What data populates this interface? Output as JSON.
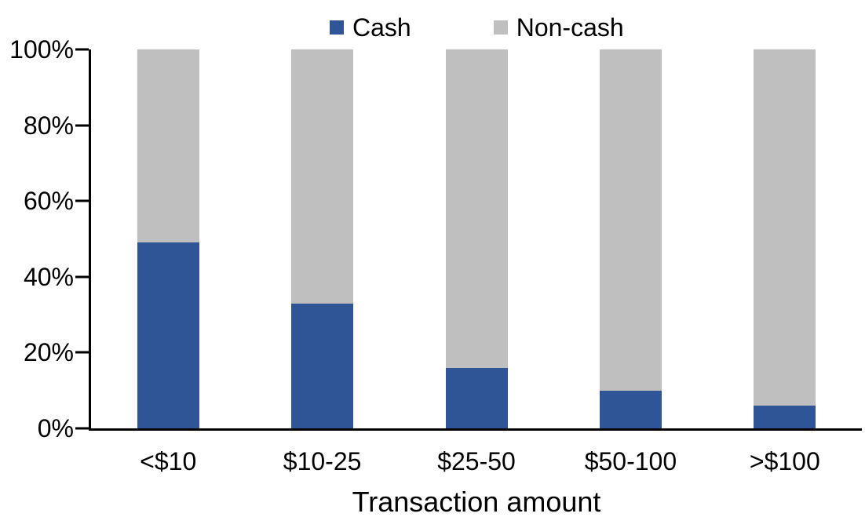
{
  "chart_data": {
    "type": "bar",
    "subtype": "stacked-100-percent",
    "title": "",
    "xlabel": "Transaction amount",
    "ylabel": "",
    "ylim": [
      0,
      100
    ],
    "grid": false,
    "legend_position": "top-center",
    "categories": [
      "<$10",
      "$10-25",
      "$25-50",
      "$50-100",
      ">$100"
    ],
    "series": [
      {
        "name": "Cash",
        "color": "#2F5597",
        "values": [
          49,
          33,
          16,
          10,
          6
        ]
      },
      {
        "name": "Non-cash",
        "color": "#BFBFBF",
        "values": [
          51,
          67,
          84,
          90,
          94
        ]
      }
    ],
    "y_ticks": [
      {
        "value": 0,
        "label": "0%"
      },
      {
        "value": 20,
        "label": "20%"
      },
      {
        "value": 40,
        "label": "40%"
      },
      {
        "value": 60,
        "label": "60%"
      },
      {
        "value": 80,
        "label": "80%"
      },
      {
        "value": 100,
        "label": "100%"
      }
    ],
    "axis_color": "#000000",
    "text_color": "#000000",
    "background_color": "#FFFFFF"
  }
}
